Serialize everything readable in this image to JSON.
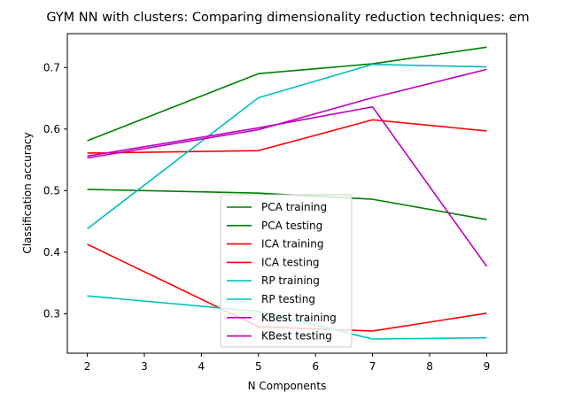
{
  "chart_data": {
    "type": "line",
    "title": "GYM NN with clusters: Comparing dimensionality reduction techniques: em",
    "xlabel": "N Components",
    "ylabel": "Classification accuracy",
    "x": [
      2,
      5,
      7,
      9
    ],
    "xlim": [
      1.65,
      9.35
    ],
    "ylim": [
      0.236,
      0.755
    ],
    "xticks": [
      2,
      3,
      4,
      5,
      6,
      7,
      8,
      9
    ],
    "yticks": [
      0.3,
      0.4,
      0.5,
      0.6,
      0.7
    ],
    "ytick_labels": [
      "0.3",
      "0.4",
      "0.5",
      "0.6",
      "0.7"
    ],
    "grid": false,
    "legend_position": "bottom-center",
    "series": [
      {
        "name": "PCA training",
        "color": "#008000",
        "values": [
          0.581,
          0.69,
          0.706,
          0.733
        ]
      },
      {
        "name": "PCA testing",
        "color": "#008000",
        "values": [
          0.502,
          0.496,
          0.486,
          0.453
        ]
      },
      {
        "name": "ICA training",
        "color": "#ff0000",
        "values": [
          0.561,
          0.565,
          0.615,
          0.597
        ]
      },
      {
        "name": "ICA testing",
        "color": "#ff0000",
        "values": [
          0.413,
          0.279,
          0.272,
          0.301
        ]
      },
      {
        "name": "RP training",
        "color": "#00bfbf",
        "values": [
          0.438,
          0.651,
          0.705,
          0.701
        ]
      },
      {
        "name": "RP testing",
        "color": "#00bfbf",
        "values": [
          0.329,
          0.304,
          0.259,
          0.261
        ]
      },
      {
        "name": "KBest training",
        "color": "#bf00bf",
        "values": [
          0.553,
          0.599,
          0.651,
          0.697
        ]
      },
      {
        "name": "KBest testing",
        "color": "#bf00bf",
        "values": [
          0.556,
          0.602,
          0.636,
          0.377
        ]
      }
    ]
  }
}
